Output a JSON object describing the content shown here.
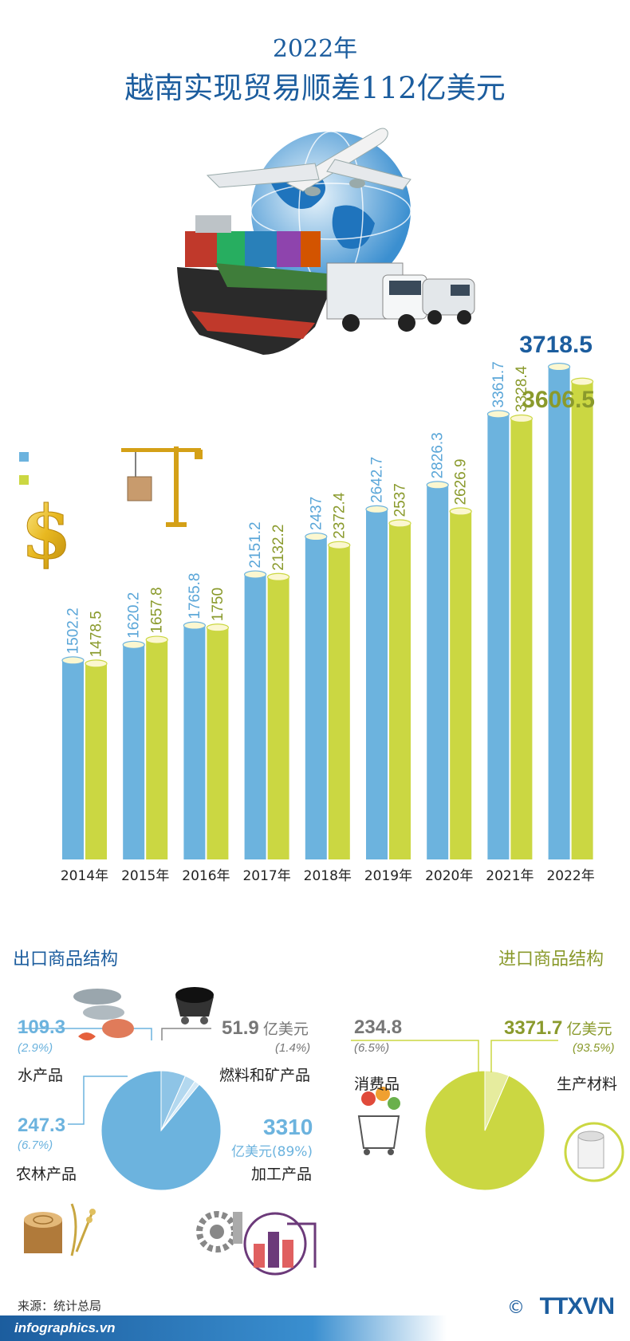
{
  "header": {
    "year_line": "2022年",
    "main_title": "越南实现贸易顺差112亿美元"
  },
  "colors": {
    "export_blue": "#6cb3de",
    "import_green": "#cbd742",
    "title_blue": "#1c5d9e",
    "green_text": "#8a9a2c"
  },
  "icons": [
    "globe-icon",
    "airplane-icon",
    "cargo-ship-icon",
    "truck-icon",
    "van-icon",
    "crane-icon",
    "dollar-icon",
    "fish-icon",
    "coal-cart-icon",
    "wood-stump-icon",
    "rice-icon",
    "gear-piston-icon",
    "factory-icon",
    "shopping-cart-icon",
    "paper-roll-icon"
  ],
  "chart_data": [
    {
      "type": "bar",
      "categories": [
        "2014年",
        "2015年",
        "2016年",
        "2017年",
        "2018年",
        "2019年",
        "2020年",
        "2021年",
        "2022年"
      ],
      "series": [
        {
          "color": "#6cb3de",
          "values": [
            1502.2,
            1620.2,
            1765.8,
            2151.2,
            2437,
            2642.7,
            2826.3,
            3361.7,
            3718.5
          ],
          "labels": [
            "1502.2",
            "1620.2",
            "1765.8",
            "2151.2",
            "2437",
            "2642.7",
            "2826.3",
            "3361.7",
            "3718.5"
          ]
        },
        {
          "color": "#cbd742",
          "values": [
            1478.5,
            1657.8,
            1750,
            2132.2,
            2372.4,
            2537,
            2626.9,
            3328.4,
            3606.5
          ],
          "labels": [
            "1478.5",
            "1657.8",
            "1750",
            "2132.2",
            "2372.4",
            "2537",
            "2626.9",
            "3328.4",
            "3606.5"
          ]
        }
      ],
      "ylim": [
        0,
        3900
      ],
      "grid": false
    },
    {
      "type": "pie",
      "title": "出口商品结构",
      "slices": [
        {
          "label": "加工产品",
          "value": 3310,
          "percent": "亿美元(89%)"
        },
        {
          "label": "农林产品",
          "value": 247.3,
          "percent": "(6.7%)"
        },
        {
          "label": "水产品",
          "value": 109.3,
          "percent": "(2.9%)"
        },
        {
          "label": "燃料和矿产品",
          "value": 51.9,
          "percent": "(1.4%)"
        }
      ]
    },
    {
      "type": "pie",
      "title": "进口商品结构",
      "slices": [
        {
          "label": "生产材料",
          "value": 3371.7,
          "percent": "(93.5%)"
        },
        {
          "label": "消费品",
          "value": 234.8,
          "percent": "(6.5%)"
        }
      ]
    }
  ],
  "export_section": {
    "title": "出口商品结构",
    "seafood": {
      "value": "109.3",
      "pct": "(2.9%)",
      "label": "水产品"
    },
    "fuel": {
      "value": "51.9",
      "unit": "亿美元",
      "pct": "(1.4%)",
      "label": "燃料和矿产品"
    },
    "agri": {
      "value": "247.3",
      "pct": "(6.7%)",
      "label": "农林产品"
    },
    "processed": {
      "value": "3310",
      "unit_pct": "亿美元(89%)",
      "label": "加工产品"
    }
  },
  "import_section": {
    "title": "进口商品结构",
    "consumer": {
      "value": "234.8",
      "pct": "(6.5%)",
      "label": "消费品"
    },
    "production": {
      "value": "3371.7",
      "unit": "亿美元",
      "pct": "(93.5%)",
      "label": "生产材料"
    }
  },
  "footer": {
    "source": "来源：统计总局",
    "site": "infographics.vn",
    "copyright": "©",
    "logo": "TTXVN"
  }
}
